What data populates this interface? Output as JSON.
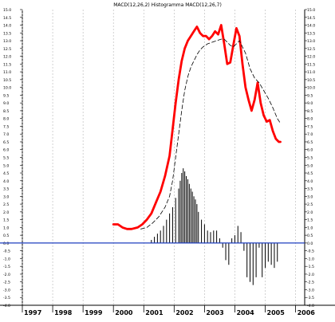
{
  "chart_data": {
    "type": "line",
    "title": "MACD(12,26,2) Histogramma MACD(12,26,7)",
    "xlabel": "",
    "ylabel": "",
    "ylim": [
      -4.0,
      15.0
    ],
    "y_ticks": [
      15.0,
      14.5,
      14.0,
      13.5,
      13.0,
      12.5,
      12.0,
      11.5,
      11.0,
      10.5,
      10.0,
      9.5,
      9.0,
      8.5,
      8.0,
      7.5,
      7.0,
      6.5,
      6.0,
      5.5,
      5.0,
      4.5,
      4.0,
      3.5,
      3.0,
      2.5,
      2.0,
      1.5,
      1.0,
      0.5,
      0.0,
      -0.5,
      -1.0,
      -1.5,
      -2.0,
      -2.5,
      -3.0,
      -3.5,
      -4.0
    ],
    "x_ticks": [
      "1997",
      "1998",
      "1999",
      "2000",
      "2001",
      "2002",
      "2003",
      "2004",
      "2005",
      "2006"
    ],
    "x_range": [
      1997.0,
      2006.3
    ],
    "grid": true,
    "legend": "none",
    "zero_line_color": "#1f3fbf",
    "series": [
      {
        "color": "#ff0000",
        "style": "thick",
        "x": [
          2000.0,
          2000.15,
          2000.3,
          2000.45,
          2000.6,
          2000.8,
          2000.95,
          2001.1,
          2001.25,
          2001.4,
          2001.55,
          2001.7,
          2001.85,
          2001.95,
          2002.05,
          2002.15,
          2002.25,
          2002.35,
          2002.45,
          2002.55,
          2002.65,
          2002.75,
          2002.85,
          2002.95,
          2003.05,
          2003.15,
          2003.25,
          2003.35,
          2003.45,
          2003.55,
          2003.65,
          2003.75,
          2003.85,
          2003.95,
          2004.05,
          2004.15,
          2004.25,
          2004.35,
          2004.45,
          2004.55,
          2004.65,
          2004.75,
          2004.85,
          2004.95,
          2005.05,
          2005.15,
          2005.25,
          2005.35,
          2005.45,
          2005.5
        ],
        "values": [
          1.2,
          1.2,
          1.0,
          0.9,
          0.9,
          1.0,
          1.2,
          1.5,
          1.9,
          2.6,
          3.3,
          4.3,
          5.6,
          7.3,
          9.0,
          10.5,
          11.7,
          12.5,
          13.0,
          13.3,
          13.6,
          13.9,
          13.5,
          13.3,
          13.3,
          13.1,
          13.3,
          13.6,
          13.4,
          14.0,
          12.8,
          11.5,
          11.6,
          12.7,
          13.8,
          13.3,
          11.5,
          10.0,
          9.2,
          8.5,
          9.2,
          10.3,
          9.0,
          8.2,
          7.8,
          7.9,
          7.2,
          6.7,
          6.5,
          6.5
        ]
      },
      {
        "color": "#000000",
        "style": "dashed",
        "x": [
          2000.9,
          2001.1,
          2001.3,
          2001.5,
          2001.7,
          2001.85,
          2001.95,
          2002.05,
          2002.15,
          2002.25,
          2002.35,
          2002.45,
          2002.55,
          2002.65,
          2002.75,
          2002.85,
          2002.95,
          2003.1,
          2003.25,
          2003.4,
          2003.55,
          2003.65,
          2003.75,
          2003.85,
          2003.95,
          2004.05,
          2004.15,
          2004.25,
          2004.35,
          2004.5,
          2004.65,
          2004.8,
          2004.95,
          2005.1,
          2005.25,
          2005.4,
          2005.5
        ],
        "values": [
          0.9,
          1.0,
          1.3,
          1.7,
          2.3,
          3.0,
          4.0,
          5.5,
          7.0,
          8.5,
          9.8,
          10.7,
          11.3,
          11.7,
          12.1,
          12.4,
          12.6,
          12.8,
          12.9,
          13.0,
          13.1,
          13.1,
          12.9,
          12.7,
          12.6,
          12.8,
          13.0,
          12.6,
          12.2,
          11.2,
          10.6,
          10.3,
          9.8,
          9.3,
          8.7,
          8.0,
          7.7
        ]
      }
    ],
    "histogram": {
      "color": "#000000",
      "x": [
        2001.25,
        2001.35,
        2001.45,
        2001.55,
        2001.65,
        2001.75,
        2001.85,
        2001.95,
        2002.05,
        2002.15,
        2002.2,
        2002.25,
        2002.3,
        2002.35,
        2002.4,
        2002.45,
        2002.5,
        2002.55,
        2002.6,
        2002.65,
        2002.7,
        2002.75,
        2002.8,
        2002.9,
        2003.0,
        2003.1,
        2003.2,
        2003.3,
        2003.4,
        2003.5,
        2003.6,
        2003.7,
        2003.8,
        2003.9,
        2004.0,
        2004.1,
        2004.2,
        2004.3,
        2004.4,
        2004.5,
        2004.6,
        2004.7,
        2004.8,
        2004.9,
        2005.0,
        2005.1,
        2005.2,
        2005.3,
        2005.4
      ],
      "values": [
        0.2,
        0.4,
        0.6,
        0.8,
        1.1,
        1.5,
        1.9,
        2.3,
        2.9,
        3.5,
        4.0,
        4.5,
        4.8,
        4.6,
        4.3,
        4.1,
        3.8,
        3.5,
        3.3,
        3.0,
        2.8,
        2.5,
        2.0,
        1.5,
        1.2,
        0.8,
        0.7,
        0.8,
        0.8,
        0.3,
        -0.3,
        -1.1,
        -1.4,
        0.3,
        0.5,
        1.1,
        0.7,
        -0.5,
        -2.2,
        -2.5,
        -2.7,
        -2.2,
        -0.3,
        -2.2,
        -1.6,
        -1.2,
        -1.4,
        -1.6,
        -1.2
      ]
    }
  }
}
